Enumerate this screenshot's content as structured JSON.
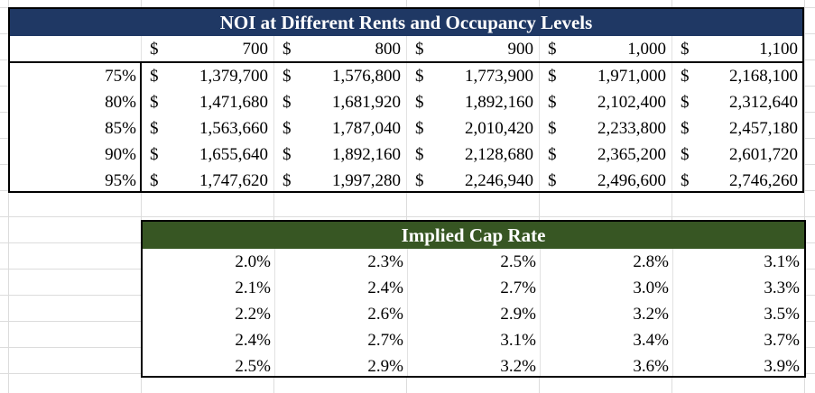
{
  "noi_table": {
    "title": "NOI at Different Rents and Occupancy Levels",
    "currency_symbol": "$",
    "rents": [
      "700",
      "800",
      "900",
      "1,000",
      "1,100"
    ],
    "rows": [
      {
        "occupancy": "75%",
        "values": [
          "1,379,700",
          "1,576,800",
          "1,773,900",
          "1,971,000",
          "2,168,100"
        ]
      },
      {
        "occupancy": "80%",
        "values": [
          "1,471,680",
          "1,681,920",
          "1,892,160",
          "2,102,400",
          "2,312,640"
        ]
      },
      {
        "occupancy": "85%",
        "values": [
          "1,563,660",
          "1,787,040",
          "2,010,420",
          "2,233,800",
          "2,457,180"
        ]
      },
      {
        "occupancy": "90%",
        "values": [
          "1,655,640",
          "1,892,160",
          "2,128,680",
          "2,365,200",
          "2,601,720"
        ]
      },
      {
        "occupancy": "95%",
        "values": [
          "1,747,620",
          "1,997,280",
          "2,246,940",
          "2,496,600",
          "2,746,260"
        ]
      }
    ]
  },
  "cap_table": {
    "title": "Implied Cap Rate",
    "rows": [
      [
        "2.0%",
        "2.3%",
        "2.5%",
        "2.8%",
        "3.1%"
      ],
      [
        "2.1%",
        "2.4%",
        "2.7%",
        "3.0%",
        "3.3%"
      ],
      [
        "2.2%",
        "2.6%",
        "2.9%",
        "3.2%",
        "3.5%"
      ],
      [
        "2.4%",
        "2.7%",
        "3.1%",
        "3.4%",
        "3.7%"
      ],
      [
        "2.5%",
        "2.9%",
        "3.2%",
        "3.6%",
        "3.9%"
      ]
    ]
  }
}
